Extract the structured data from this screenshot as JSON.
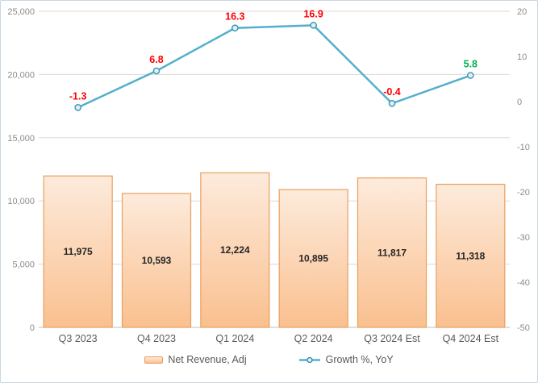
{
  "chart_data": {
    "type": "combo-bar-line",
    "title": "",
    "categories": [
      "Q3 2023",
      "Q4 2023",
      "Q1 2024",
      "Q2 2024",
      "Q3 2024 Est",
      "Q4 2024 Est"
    ],
    "series": [
      {
        "name": "Net Revenue, Adj",
        "type": "bar",
        "axis": "left",
        "values": [
          11975,
          10593,
          12224,
          10895,
          11817,
          11318
        ],
        "labels": [
          "11,975",
          "10,593",
          "12,224",
          "10,895",
          "11,817",
          "11,318"
        ],
        "label_position": "center"
      },
      {
        "name": "Growth %, YoY",
        "type": "line",
        "axis": "right",
        "values": [
          -1.3,
          6.8,
          16.3,
          16.9,
          -0.4,
          5.8
        ],
        "labels": [
          "-1.3",
          "6.8",
          "16.3",
          "16.9",
          "-0.4",
          "5.8"
        ],
        "label_colors": [
          "#FF0000",
          "#FF0000",
          "#FF0000",
          "#FF0000",
          "#FF0000",
          "#00B050"
        ],
        "label_position": "above"
      }
    ],
    "left_axis": {
      "min": 0,
      "max": 25000,
      "step": 5000,
      "tick_labels": [
        "0",
        "5,000",
        "10,000",
        "15,000",
        "20,000",
        "25,000"
      ]
    },
    "right_axis": {
      "min": -50,
      "max": 20,
      "step": 10,
      "tick_labels": [
        "-50",
        "-40",
        "-30",
        "-20",
        "-10",
        "0",
        "10",
        "20"
      ]
    },
    "grid": true,
    "legend_position": "bottom"
  },
  "legend": {
    "items": [
      {
        "label": "Net Revenue, Adj",
        "swatch": "bar"
      },
      {
        "label": "Growth %, YoY",
        "swatch": "line"
      }
    ]
  },
  "colors": {
    "bar_fill_top": "#FDEBDC",
    "bar_fill_bottom": "#FAC08F",
    "bar_border": "#E8A05E",
    "bar_label": "#262626",
    "line": "#54AFCC",
    "marker_fill": "#DCF0F7",
    "marker_stroke": "#3D93AE",
    "label_red": "#FF0000",
    "label_green": "#00B050",
    "axis_text": "#8C8C8C",
    "category_text": "#595959",
    "gridline": "#D9D9D9",
    "axis_line": "#BFBFBF",
    "border": "#C9D6E2"
  }
}
